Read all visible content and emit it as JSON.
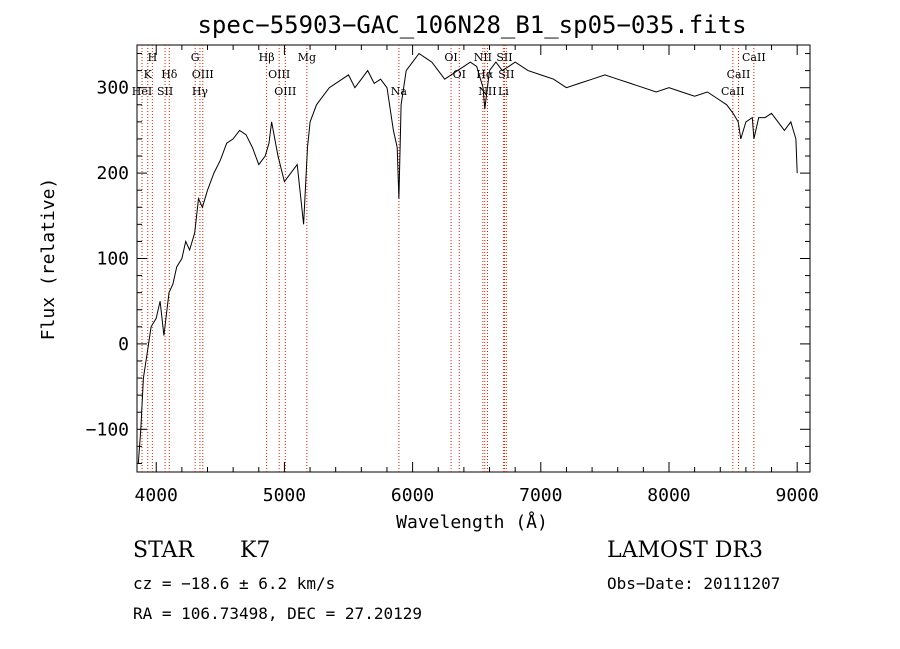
{
  "chart_data": {
    "type": "line",
    "title": "spec−55903−GAC_106N28_B1_sp05−035.fits",
    "xlabel": "Wavelength (Å)",
    "ylabel": "Flux (relative)",
    "xlim": [
      3850,
      9100
    ],
    "ylim": [
      -150,
      350
    ],
    "x_ticks": [
      4000,
      5000,
      6000,
      7000,
      8000,
      9000
    ],
    "x_tick_labels": [
      "4000",
      "5000",
      "6000",
      "7000",
      "8000",
      "9000"
    ],
    "y_ticks": [
      -100,
      0,
      100,
      200,
      300
    ],
    "y_tick_labels": [
      "−100",
      "0",
      "100",
      "200",
      "300"
    ],
    "series": [
      {
        "name": "spectrum",
        "x": [
          3860,
          3880,
          3900,
          3930,
          3960,
          4000,
          4030,
          4060,
          4100,
          4130,
          4160,
          4200,
          4230,
          4260,
          4300,
          4330,
          4360,
          4400,
          4450,
          4500,
          4550,
          4600,
          4650,
          4700,
          4750,
          4800,
          4850,
          4880,
          4900,
          4950,
          5000,
          5050,
          5100,
          5150,
          5180,
          5200,
          5250,
          5300,
          5350,
          5400,
          5450,
          5500,
          5550,
          5600,
          5650,
          5700,
          5750,
          5800,
          5850,
          5880,
          5893,
          5910,
          5950,
          6000,
          6050,
          6100,
          6150,
          6200,
          6250,
          6300,
          6350,
          6400,
          6450,
          6500,
          6550,
          6563,
          6600,
          6650,
          6700,
          6750,
          6800,
          6900,
          7000,
          7100,
          7200,
          7300,
          7400,
          7500,
          7600,
          7700,
          7800,
          7900,
          8000,
          8100,
          8200,
          8300,
          8400,
          8450,
          8500,
          8540,
          8560,
          8600,
          8650,
          8662,
          8700,
          8750,
          8800,
          8850,
          8900,
          8950,
          8990,
          9000
        ],
        "y": [
          -140,
          -100,
          -40,
          -10,
          20,
          30,
          50,
          10,
          60,
          70,
          90,
          100,
          120,
          110,
          130,
          170,
          160,
          180,
          200,
          215,
          235,
          240,
          250,
          245,
          230,
          210,
          220,
          235,
          260,
          220,
          190,
          200,
          210,
          140,
          230,
          260,
          280,
          290,
          300,
          305,
          310,
          315,
          300,
          310,
          320,
          305,
          310,
          300,
          250,
          230,
          170,
          280,
          320,
          330,
          340,
          335,
          330,
          320,
          310,
          315,
          320,
          325,
          330,
          325,
          300,
          275,
          320,
          330,
          320,
          325,
          330,
          320,
          315,
          310,
          300,
          305,
          310,
          315,
          310,
          305,
          300,
          295,
          300,
          295,
          290,
          295,
          285,
          280,
          270,
          260,
          240,
          260,
          265,
          240,
          265,
          265,
          270,
          260,
          250,
          260,
          240,
          200
        ]
      }
    ],
    "spectral_lines": [
      {
        "label": "H",
        "x": 3970,
        "row": 0
      },
      {
        "label": "K",
        "x": 3934,
        "row": 1
      },
      {
        "label": "HeI",
        "x": 3889,
        "row": 2
      },
      {
        "label": "SII",
        "x": 4069,
        "row": 2
      },
      {
        "label": "Hδ",
        "x": 4102,
        "row": 1
      },
      {
        "label": "G",
        "x": 4304,
        "row": 0
      },
      {
        "label": "OIII",
        "x": 4363,
        "row": 1
      },
      {
        "label": "Hγ",
        "x": 4341,
        "row": 2
      },
      {
        "label": "Hβ",
        "x": 4861,
        "row": 0
      },
      {
        "label": "OIII",
        "x": 4959,
        "row": 1
      },
      {
        "label": "OIII",
        "x": 5007,
        "row": 2
      },
      {
        "label": "Mg",
        "x": 5175,
        "row": 0
      },
      {
        "label": "Na",
        "x": 5893,
        "row": 2
      },
      {
        "label": "OI",
        "x": 6300,
        "row": 0
      },
      {
        "label": "OI",
        "x": 6364,
        "row": 1
      },
      {
        "label": "NII",
        "x": 6548,
        "row": 0
      },
      {
        "label": "SII",
        "x": 6717,
        "row": 0
      },
      {
        "label": "Hα",
        "x": 6563,
        "row": 1
      },
      {
        "label": "SII",
        "x": 6731,
        "row": 1
      },
      {
        "label": "NII",
        "x": 6584,
        "row": 2
      },
      {
        "label": "Li",
        "x": 6708,
        "row": 2
      },
      {
        "label": "CaII",
        "x": 8662,
        "row": 0
      },
      {
        "label": "CaII",
        "x": 8542,
        "row": 1
      },
      {
        "label": "CaII",
        "x": 8498,
        "row": 2
      }
    ],
    "line_color": "#000000",
    "marker_color": "#cc2200"
  },
  "info": {
    "class_label": "STAR",
    "subclass": "K7",
    "cz": "cz = −18.6 ± 6.2 km/s",
    "coords": "RA = 106.73498, DEC =  27.20129",
    "survey": "LAMOST DR3",
    "obs_date": "Obs−Date: 20111207"
  }
}
